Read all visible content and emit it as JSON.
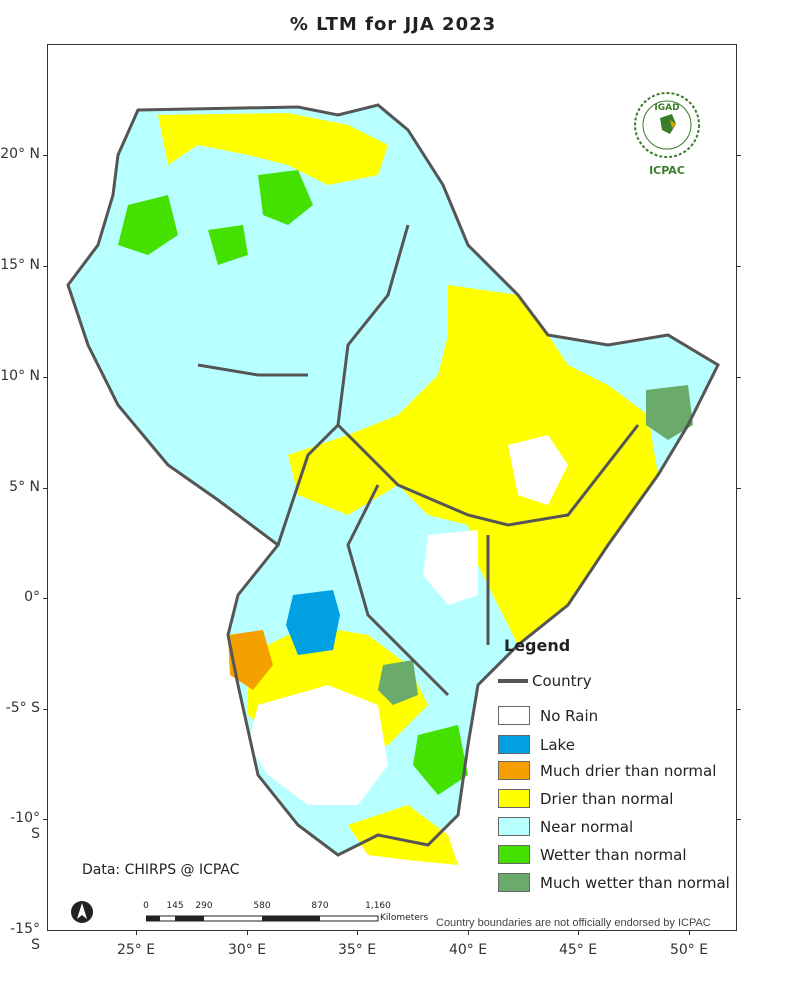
{
  "map": {
    "title": "% LTM  for  JJA  2023",
    "credit": "Data: CHIRPS @ ICPAC",
    "disclaimer": "Country boundaries are not officially endorsed by ICPAC",
    "logo": {
      "name": "igad-icpac-logo",
      "top_text": "IGAD",
      "bottom_text": "ICPAC"
    },
    "north_arrow": "north-arrow-icon",
    "y_axis_labels": [
      "20° N",
      "15° N",
      "10° N",
      "5° N",
      "0°",
      "-5° S",
      "-10° S",
      "-15° S"
    ],
    "x_axis_labels": [
      "25° E",
      "30° E",
      "35° E",
      "40° E",
      "45° E",
      "50° E"
    ],
    "scale_bar": {
      "ticks": [
        "0",
        "145",
        "290",
        "580",
        "870",
        "1,160"
      ],
      "unit": "Kilometers"
    },
    "legend": {
      "title": "Legend",
      "country_label": "Country",
      "items": [
        {
          "label": "No Rain",
          "color": "#ffffff"
        },
        {
          "label": "Lake",
          "color": "#00a0e3"
        },
        {
          "label": "Much drier than normal",
          "color": "#f5a000"
        },
        {
          "label": "Drier than normal",
          "color": "#ffff00"
        },
        {
          "label": "Near normal",
          "color": "#b8ffff"
        },
        {
          "label": "Wetter than normal",
          "color": "#44e000"
        },
        {
          "label": "Much wetter than normal",
          "color": "#6aaa6a"
        }
      ]
    }
  }
}
